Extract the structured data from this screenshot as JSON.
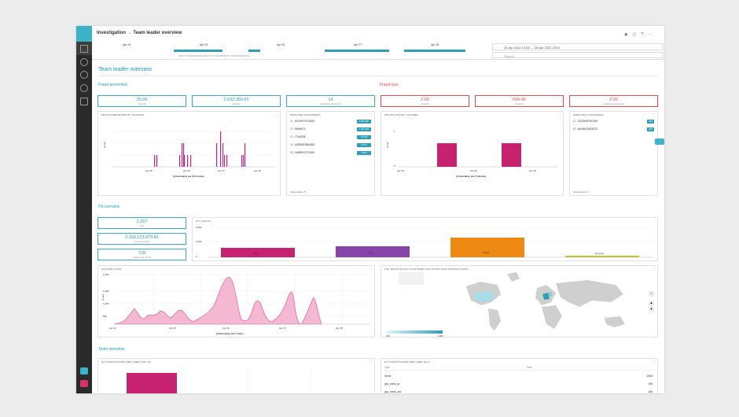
{
  "breadcrumb": {
    "root": "Investigation",
    "arrow": "→",
    "page": "Team leader overview"
  },
  "timeline": {
    "labels": [
      "Apr 24",
      "Apr 25",
      "Apr 26",
      "Apr 27",
      "Apr 28"
    ],
    "note": "DROP ON MAIN AREA OR HIT TO SETTIME TO 100TH RESULTS"
  },
  "date_range": "24 Apr 2022 14:48 → 28 Apr 2022 23:01",
  "search_placeholder": "Search...",
  "page_title": "Team leader overview",
  "fraud_prevented": {
    "title": "Fraud prevented",
    "kpis": [
      {
        "value": "25.00",
        "label": "Frauds"
      },
      {
        "value": "2,632,359.55",
        "label": "Amount"
      },
      {
        "value": "14",
        "label": "Impacted customers"
      }
    ]
  },
  "fraud_loss": {
    "title": "Fraud loss",
    "kpis": [
      {
        "value": "2.00",
        "label": "Frauds"
      },
      {
        "value": "696.00",
        "label": "Amount"
      },
      {
        "value": "2.00",
        "label": "Impacted customers"
      }
    ]
  },
  "fp_chart": {
    "title": "FRAUD PREVENTED BY CHANNEL",
    "ylabel": "Count",
    "xlabel": "@timestamp per 30 minutes",
    "ticks": [
      "Apr 25",
      "Apr 26",
      "Apr 27",
      "Apr 28"
    ]
  },
  "impacted": {
    "title": "IMPACTED CUSTOMERS",
    "rows": [
      {
        "n": "01.",
        "id": "9102970701693",
        "badge": "2,562,080"
      },
      {
        "n": "02.",
        "id": "5596673",
        "badge": "1,301,165"
      },
      {
        "n": "03.",
        "id": "7764208",
        "badge": "70,545"
      },
      {
        "n": "04.",
        "id": "5280520384483",
        "badge": "5,570"
      },
      {
        "n": "05.",
        "id": "1685570272452",
        "badge": "4,500"
      }
    ],
    "total": "Total entries: 5"
  },
  "fl_chart": {
    "title": "FRAUD LOSS BY CHANNEL",
    "ylabel": "Count",
    "xlabel": "@timestamp per 3 minutes",
    "ticks": [
      "Apr 24",
      "Apr 26",
      "Apr 28"
    ],
    "yticks": [
      "1",
      "0"
    ]
  },
  "impacted2": {
    "title": "IMPACTED CUSTOMERS",
    "rows": [
      {
        "n": "01.",
        "id": "2025463760199",
        "badge": "348"
      },
      {
        "n": "02.",
        "id": "6645670425570",
        "badge": "348"
      }
    ],
    "total": "Total entries: 2"
  },
  "hit_overview": {
    "title": "Hit overview",
    "kpis": [
      {
        "value": "2,267",
        "label": "Hits"
      },
      {
        "value": "2,193,123,873.81",
        "label": "Amount at risk"
      },
      {
        "value": "728",
        "label": "Customers at risk"
      }
    ]
  },
  "hit_status": {
    "title": "HIT STATUS",
    "bars": [
      {
        "label": "New",
        "color": "#c7226f"
      },
      {
        "label": "Open",
        "color": "#8844a8"
      },
      {
        "label": "Fraud",
        "color": "#ee8a14"
      },
      {
        "label": "Genuine",
        "color": "#c9c22a"
      }
    ],
    "yticks": [
      "2,000",
      "1,000",
      "0"
    ]
  },
  "hit_evolution": {
    "title": "HIT EVOLUTION",
    "ylabel": "Count",
    "xlabel": "@timestamp per 6 hours",
    "yticks": [
      "1,000",
      "1,000",
      "1,000",
      "500"
    ],
    "xticks": [
      "Apr 24",
      "Apr 25",
      "Apr 26",
      "Apr 27",
      "Apr 28"
    ]
  },
  "map": {
    "title": "TOP DESTINATION COUNTRIES FOR SUSPICIOUS TRANSACTIONS",
    "legend_min": "154",
    "legend_max": "1180"
  },
  "team_overview": {
    "title": "Team overview"
  },
  "hits_per_user": {
    "title": "HIT INVESTIGATED PER USER (TOP 10)"
  },
  "hits_user_all": {
    "title": "HIT INVESTIGATED PER USER (ALL)",
    "col_user": "User",
    "col_total": "Total",
    "rows": [
      {
        "user": "None",
        "total": "1069"
      },
      {
        "user": "grp_bank_tp",
        "total": "195"
      },
      {
        "user": "grp_bank_aw",
        "total": "166"
      },
      {
        "user": "admin",
        "total": "37"
      }
    ]
  }
}
